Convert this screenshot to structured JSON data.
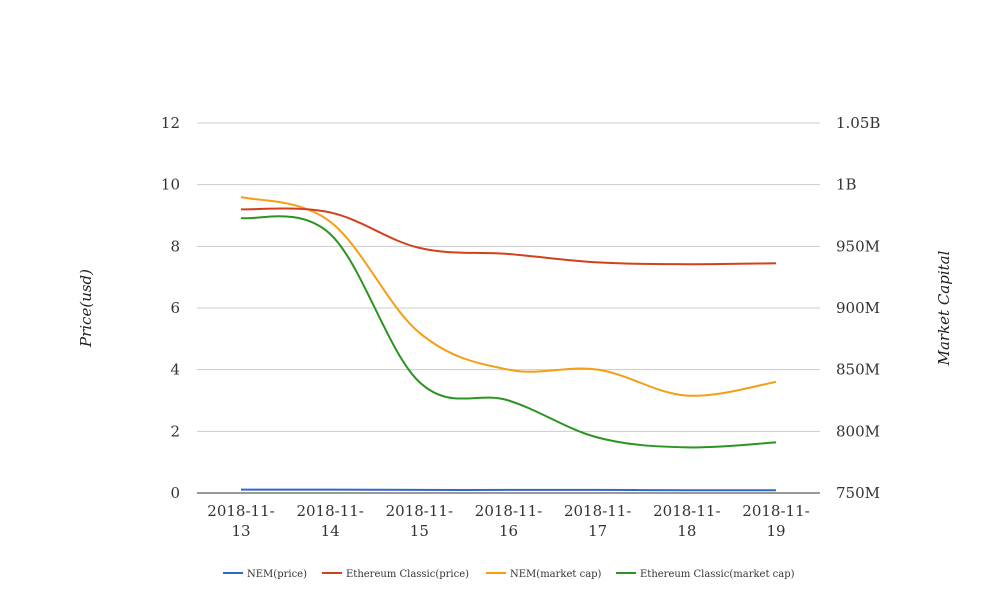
{
  "chart_data": {
    "type": "line",
    "categories": [
      "2018-11-13",
      "2018-11-14",
      "2018-11-15",
      "2018-11-16",
      "2018-11-17",
      "2018-11-18",
      "2018-11-19"
    ],
    "x_tick_labels": [
      [
        "2018-11-",
        "13"
      ],
      [
        "2018-11-",
        "14"
      ],
      [
        "2018-11-",
        "15"
      ],
      [
        "2018-11-",
        "16"
      ],
      [
        "2018-11-",
        "17"
      ],
      [
        "2018-11-",
        "18"
      ],
      [
        "2018-11-",
        "19"
      ]
    ],
    "ylabel_left": "Price(usd)",
    "ylabel_right": "Market Capital",
    "ylim_left": [
      0,
      12
    ],
    "ylim_right": [
      750000000,
      1050000000
    ],
    "yticks_left": [
      "0",
      "2",
      "4",
      "6",
      "8",
      "10",
      "12"
    ],
    "yticks_right": [
      "750M",
      "800M",
      "850M",
      "900M",
      "950M",
      "1B",
      "1.05B"
    ],
    "grid": true,
    "legend_position": "bottom",
    "series": [
      {
        "name": "NEM(price)",
        "axis": "left",
        "color": "#3366cc",
        "values": [
          0.11,
          0.11,
          0.1,
          0.1,
          0.1,
          0.09,
          0.09
        ]
      },
      {
        "name": "Ethereum Classic(price)",
        "axis": "left",
        "color": "#d1411c",
        "values": [
          9.2,
          9.1,
          7.95,
          7.75,
          7.48,
          7.42,
          7.45
        ]
      },
      {
        "name": "NEM(market cap)",
        "axis": "right",
        "color": "#f59e14",
        "values": [
          990000000,
          970000000,
          880000000,
          850000000,
          850000000,
          829000000,
          840000000
        ]
      },
      {
        "name": "Ethereum Classic(market cap)",
        "axis": "right",
        "color": "#2c9422",
        "values": [
          973000000,
          960000000,
          840000000,
          825000000,
          795000000,
          787000000,
          791000000
        ]
      }
    ]
  }
}
